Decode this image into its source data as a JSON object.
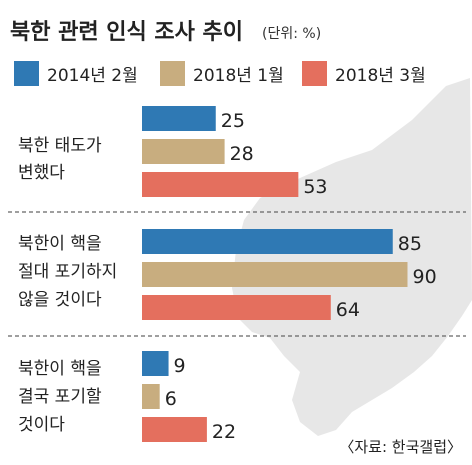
{
  "title": "북한 관련 인식 조사 추이",
  "unit": "(단위: %)",
  "source": "〈자료: 한국갤럽〉",
  "colors": {
    "series": [
      "#2f79b4",
      "#c8ad7f",
      "#e46f5e"
    ],
    "map": "#e7e7e7",
    "divider": "#666666"
  },
  "chart_data": {
    "type": "bar",
    "orientation": "horizontal",
    "categories": [
      [
        "북한 태도가",
        "변했다"
      ],
      [
        "북한이 핵을",
        "절대 포기하지",
        "않을 것이다"
      ],
      [
        "북한이 핵을",
        "결국 포기할",
        "것이다"
      ]
    ],
    "series": [
      {
        "name": "2014년 2월",
        "values": [
          25,
          85,
          9
        ]
      },
      {
        "name": "2018년 1월",
        "values": [
          28,
          90,
          6
        ]
      },
      {
        "name": "2018년 3월",
        "values": [
          53,
          64,
          22
        ]
      }
    ],
    "xlim": [
      0,
      100
    ],
    "legend": "top"
  }
}
